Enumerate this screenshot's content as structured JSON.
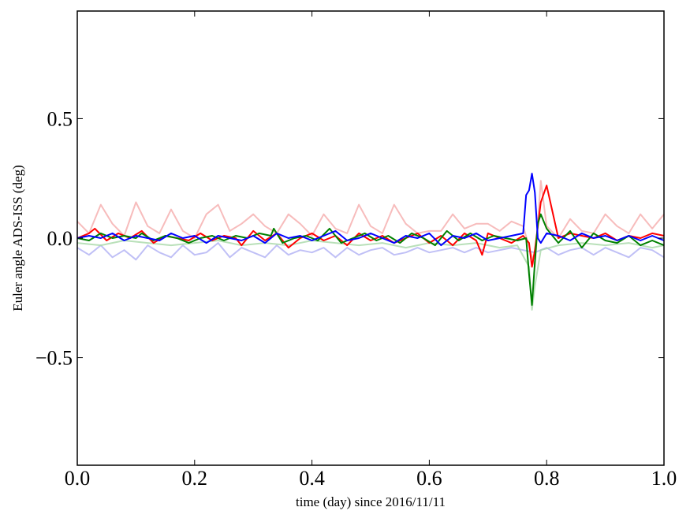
{
  "chart_data": {
    "type": "line",
    "title": "",
    "xlabel": "time (day) since 2016/11/11",
    "ylabel": "Euler angle ADS-ISS (deg)",
    "xlim": [
      0.0,
      1.0
    ],
    "ylim": [
      -0.95,
      0.95
    ],
    "xticks": [
      0.0,
      0.2,
      0.4,
      0.6,
      0.8,
      1.0
    ],
    "xtick_labels": [
      "0.0",
      "0.2",
      "0.4",
      "0.6",
      "0.8",
      "1.0"
    ],
    "yticks": [
      -0.5,
      0.0,
      0.5
    ],
    "ytick_labels": [
      "−0.5",
      "0.0",
      "0.5"
    ],
    "grid": false,
    "legend": "none",
    "series": [
      {
        "color": "#f4a0a0",
        "opacity": 0.7,
        "x": [
          0.0,
          0.02,
          0.04,
          0.06,
          0.08,
          0.1,
          0.12,
          0.14,
          0.16,
          0.18,
          0.2,
          0.22,
          0.24,
          0.26,
          0.28,
          0.3,
          0.32,
          0.34,
          0.36,
          0.38,
          0.4,
          0.42,
          0.44,
          0.46,
          0.48,
          0.5,
          0.52,
          0.54,
          0.56,
          0.58,
          0.6,
          0.62,
          0.64,
          0.66,
          0.68,
          0.7,
          0.72,
          0.74,
          0.76,
          0.78,
          0.79,
          0.8,
          0.82,
          0.84,
          0.86,
          0.88,
          0.9,
          0.92,
          0.94,
          0.96,
          0.98,
          1.0
        ],
        "y": [
          0.07,
          0.02,
          0.14,
          0.06,
          0.01,
          0.15,
          0.05,
          0.02,
          0.12,
          0.03,
          0.0,
          0.1,
          0.14,
          0.03,
          0.06,
          0.1,
          0.05,
          0.02,
          0.1,
          0.06,
          0.01,
          0.1,
          0.04,
          0.02,
          0.14,
          0.05,
          0.02,
          0.14,
          0.06,
          0.02,
          0.03,
          0.03,
          0.1,
          0.04,
          0.06,
          0.06,
          0.03,
          0.07,
          0.05,
          -0.12,
          0.24,
          0.05,
          0.0,
          0.08,
          0.03,
          0.02,
          0.1,
          0.05,
          0.02,
          0.1,
          0.04,
          0.1
        ]
      },
      {
        "color": "#b0b0f4",
        "opacity": 0.8,
        "x": [
          0.0,
          0.02,
          0.04,
          0.06,
          0.08,
          0.1,
          0.12,
          0.14,
          0.16,
          0.18,
          0.2,
          0.22,
          0.24,
          0.26,
          0.28,
          0.3,
          0.32,
          0.34,
          0.36,
          0.38,
          0.4,
          0.42,
          0.44,
          0.46,
          0.48,
          0.5,
          0.52,
          0.54,
          0.56,
          0.58,
          0.6,
          0.62,
          0.64,
          0.66,
          0.68,
          0.7,
          0.72,
          0.74,
          0.76,
          0.78,
          0.8,
          0.82,
          0.84,
          0.86,
          0.88,
          0.9,
          0.92,
          0.94,
          0.96,
          0.98,
          1.0
        ],
        "y": [
          -0.04,
          -0.07,
          -0.03,
          -0.08,
          -0.05,
          -0.09,
          -0.03,
          -0.06,
          -0.08,
          -0.03,
          -0.07,
          -0.06,
          -0.02,
          -0.08,
          -0.04,
          -0.06,
          -0.08,
          -0.03,
          -0.07,
          -0.05,
          -0.06,
          -0.04,
          -0.08,
          -0.04,
          -0.07,
          -0.05,
          -0.04,
          -0.07,
          -0.06,
          -0.04,
          -0.06,
          -0.05,
          -0.04,
          -0.06,
          -0.04,
          -0.06,
          -0.05,
          -0.04,
          -0.05,
          -0.06,
          -0.04,
          -0.07,
          -0.05,
          -0.04,
          -0.07,
          -0.04,
          -0.06,
          -0.08,
          -0.04,
          -0.05,
          -0.08
        ]
      },
      {
        "color": "#a8d8a8",
        "opacity": 0.8,
        "x": [
          0.0,
          0.04,
          0.08,
          0.12,
          0.16,
          0.2,
          0.24,
          0.28,
          0.32,
          0.36,
          0.4,
          0.44,
          0.48,
          0.52,
          0.56,
          0.6,
          0.64,
          0.68,
          0.72,
          0.75,
          0.77,
          0.775,
          0.78,
          0.79,
          0.82,
          0.86,
          0.9,
          0.94,
          0.98,
          1.0
        ],
        "y": [
          -0.02,
          -0.03,
          -0.01,
          -0.02,
          -0.03,
          -0.02,
          -0.01,
          -0.03,
          -0.02,
          -0.03,
          -0.01,
          -0.02,
          -0.03,
          -0.02,
          -0.04,
          -0.02,
          -0.03,
          -0.02,
          -0.04,
          -0.03,
          -0.12,
          -0.3,
          -0.2,
          -0.05,
          -0.03,
          -0.02,
          -0.03,
          -0.02,
          -0.04,
          -0.03
        ]
      },
      {
        "color": "#ff0000",
        "opacity": 1,
        "x": [
          0.0,
          0.02,
          0.03,
          0.05,
          0.07,
          0.09,
          0.11,
          0.13,
          0.15,
          0.17,
          0.19,
          0.21,
          0.23,
          0.25,
          0.27,
          0.28,
          0.3,
          0.32,
          0.34,
          0.36,
          0.38,
          0.4,
          0.42,
          0.44,
          0.46,
          0.48,
          0.5,
          0.52,
          0.54,
          0.56,
          0.58,
          0.6,
          0.62,
          0.64,
          0.66,
          0.68,
          0.69,
          0.7,
          0.72,
          0.74,
          0.76,
          0.77,
          0.775,
          0.78,
          0.79,
          0.8,
          0.82,
          0.84,
          0.86,
          0.88,
          0.9,
          0.92,
          0.94,
          0.96,
          0.98,
          1.0
        ],
        "y": [
          0.0,
          0.02,
          0.04,
          -0.01,
          0.02,
          0.0,
          0.03,
          -0.02,
          0.01,
          0.0,
          -0.01,
          0.02,
          -0.01,
          0.01,
          0.0,
          -0.03,
          0.03,
          -0.01,
          0.02,
          -0.04,
          0.0,
          0.02,
          -0.01,
          0.01,
          -0.03,
          0.02,
          -0.01,
          0.01,
          -0.02,
          0.0,
          0.02,
          -0.02,
          0.01,
          -0.03,
          0.02,
          -0.01,
          -0.07,
          0.02,
          0.0,
          -0.02,
          0.01,
          -0.02,
          -0.12,
          -0.05,
          0.15,
          0.22,
          0.0,
          0.02,
          0.01,
          0.0,
          0.02,
          -0.01,
          0.01,
          0.0,
          0.02,
          0.01
        ]
      },
      {
        "color": "#008000",
        "opacity": 1,
        "x": [
          0.0,
          0.02,
          0.04,
          0.06,
          0.08,
          0.1,
          0.11,
          0.13,
          0.15,
          0.17,
          0.19,
          0.21,
          0.23,
          0.25,
          0.27,
          0.29,
          0.31,
          0.33,
          0.335,
          0.35,
          0.37,
          0.39,
          0.41,
          0.43,
          0.45,
          0.47,
          0.49,
          0.51,
          0.53,
          0.55,
          0.57,
          0.59,
          0.61,
          0.63,
          0.65,
          0.67,
          0.69,
          0.71,
          0.73,
          0.75,
          0.765,
          0.77,
          0.775,
          0.78,
          0.785,
          0.79,
          0.8,
          0.82,
          0.84,
          0.86,
          0.88,
          0.9,
          0.92,
          0.94,
          0.96,
          0.98,
          1.0
        ],
        "y": [
          0.0,
          -0.01,
          0.02,
          0.0,
          0.01,
          0.0,
          0.02,
          -0.01,
          0.01,
          0.0,
          -0.02,
          0.0,
          0.01,
          -0.01,
          0.01,
          0.0,
          0.02,
          0.01,
          0.04,
          -0.02,
          0.0,
          0.01,
          -0.01,
          0.04,
          -0.02,
          0.0,
          0.02,
          -0.01,
          0.01,
          -0.02,
          0.02,
          0.0,
          -0.03,
          0.03,
          -0.01,
          0.02,
          -0.01,
          0.01,
          0.0,
          -0.01,
          0.0,
          -0.15,
          -0.28,
          -0.1,
          0.06,
          0.1,
          0.04,
          -0.02,
          0.03,
          -0.04,
          0.02,
          -0.01,
          -0.02,
          0.01,
          -0.03,
          -0.01,
          -0.03
        ]
      },
      {
        "color": "#0000ff",
        "opacity": 1,
        "x": [
          0.0,
          0.02,
          0.04,
          0.06,
          0.08,
          0.1,
          0.12,
          0.14,
          0.16,
          0.18,
          0.2,
          0.22,
          0.24,
          0.26,
          0.28,
          0.3,
          0.32,
          0.34,
          0.36,
          0.38,
          0.4,
          0.42,
          0.44,
          0.46,
          0.48,
          0.5,
          0.52,
          0.54,
          0.56,
          0.58,
          0.6,
          0.62,
          0.64,
          0.66,
          0.68,
          0.7,
          0.72,
          0.74,
          0.76,
          0.765,
          0.77,
          0.775,
          0.78,
          0.785,
          0.79,
          0.8,
          0.82,
          0.84,
          0.86,
          0.88,
          0.9,
          0.92,
          0.94,
          0.96,
          0.98,
          1.0
        ],
        "y": [
          0.0,
          0.01,
          0.0,
          0.02,
          -0.01,
          0.01,
          0.0,
          -0.01,
          0.02,
          0.0,
          0.01,
          -0.02,
          0.01,
          0.0,
          -0.01,
          0.01,
          -0.02,
          0.02,
          0.0,
          0.01,
          -0.01,
          0.01,
          0.03,
          -0.01,
          0.0,
          0.02,
          0.0,
          -0.02,
          0.01,
          0.0,
          0.02,
          -0.03,
          0.01,
          0.0,
          0.02,
          -0.01,
          0.0,
          0.01,
          0.02,
          0.18,
          0.2,
          0.27,
          0.19,
          0.0,
          -0.02,
          0.02,
          0.01,
          -0.01,
          0.02,
          0.0,
          0.01,
          -0.01,
          0.01,
          -0.01,
          0.01,
          -0.01
        ]
      }
    ]
  }
}
